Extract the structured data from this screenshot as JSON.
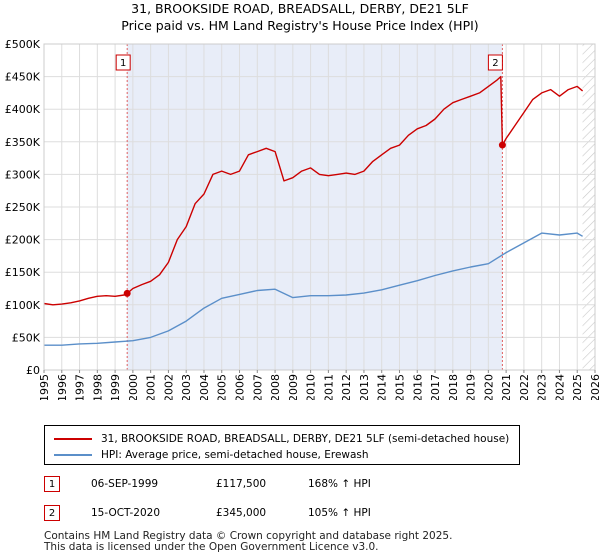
{
  "title_line1": "31, BROOKSIDE ROAD, BREADSALL, DERBY, DE21 5LF",
  "title_line2": "Price paid vs. HM Land Registry's House Price Index (HPI)",
  "chart_data": {
    "type": "line",
    "title": "31, BROOKSIDE ROAD, BREADSALL, DERBY, DE21 5LF - Price paid vs. HM Land Registry's House Price Index (HPI)",
    "xlabel": "",
    "ylabel": "",
    "xlim": [
      1995,
      2026
    ],
    "ylim": [
      0,
      500000
    ],
    "grid": true,
    "y_ticks": [
      0,
      50000,
      100000,
      150000,
      200000,
      250000,
      300000,
      350000,
      400000,
      450000,
      500000
    ],
    "y_tick_labels": [
      "£0",
      "£50K",
      "£100K",
      "£150K",
      "£200K",
      "£250K",
      "£300K",
      "£350K",
      "£400K",
      "£450K",
      "£500K"
    ],
    "x_ticks": [
      "1995",
      "1996",
      "1997",
      "1998",
      "1999",
      "2000",
      "2001",
      "2002",
      "2003",
      "2004",
      "2005",
      "2006",
      "2007",
      "2008",
      "2009",
      "2010",
      "2011",
      "2012",
      "2013",
      "2014",
      "2015",
      "2016",
      "2017",
      "2018",
      "2019",
      "2020",
      "2021",
      "2022",
      "2023",
      "2024",
      "2025",
      "2026"
    ],
    "shaded_region": [
      1999.68,
      2020.79
    ],
    "forecast_hatch_from": 2025.3,
    "series": [
      {
        "name": "31, BROOKSIDE ROAD, BREADSALL, DERBY, DE21 5LF (semi-detached house)",
        "color": "#cc0000",
        "x": [
          1995.0,
          1995.5,
          1996.0,
          1996.5,
          1997.0,
          1997.5,
          1998.0,
          1998.5,
          1999.0,
          1999.5,
          1999.68,
          2000.0,
          2000.5,
          2001.0,
          2001.5,
          2002.0,
          2002.5,
          2003.0,
          2003.5,
          2004.0,
          2004.5,
          2005.0,
          2005.5,
          2006.0,
          2006.5,
          2007.0,
          2007.5,
          2008.0,
          2008.5,
          2009.0,
          2009.5,
          2010.0,
          2010.5,
          2011.0,
          2011.5,
          2012.0,
          2012.5,
          2013.0,
          2013.5,
          2014.0,
          2014.5,
          2015.0,
          2015.5,
          2016.0,
          2016.5,
          2017.0,
          2017.5,
          2018.0,
          2018.5,
          2019.0,
          2019.5,
          2020.0,
          2020.5,
          2020.7,
          2020.79,
          2021.0,
          2021.5,
          2022.0,
          2022.5,
          2023.0,
          2023.5,
          2024.0,
          2024.5,
          2025.0,
          2025.3
        ],
        "values": [
          102000,
          100000,
          101000,
          103000,
          106000,
          110000,
          113000,
          114000,
          113000,
          115000,
          117500,
          125000,
          131000,
          136000,
          146000,
          165000,
          200000,
          220000,
          255000,
          270000,
          300000,
          305000,
          300000,
          305000,
          330000,
          335000,
          340000,
          335000,
          290000,
          295000,
          305000,
          310000,
          300000,
          298000,
          300000,
          302000,
          300000,
          305000,
          320000,
          330000,
          340000,
          345000,
          360000,
          370000,
          375000,
          385000,
          400000,
          410000,
          415000,
          420000,
          425000,
          435000,
          445000,
          450000,
          345000,
          355000,
          375000,
          395000,
          415000,
          425000,
          430000,
          420000,
          430000,
          435000,
          428000
        ]
      },
      {
        "name": "HPI: Average price, semi-detached house, Erewash",
        "color": "#5b8fc9",
        "x": [
          1995.0,
          1996.0,
          1997.0,
          1998.0,
          1999.0,
          2000.0,
          2001.0,
          2002.0,
          2003.0,
          2004.0,
          2005.0,
          2006.0,
          2007.0,
          2008.0,
          2009.0,
          2010.0,
          2011.0,
          2012.0,
          2013.0,
          2014.0,
          2015.0,
          2016.0,
          2017.0,
          2018.0,
          2019.0,
          2020.0,
          2021.0,
          2022.0,
          2023.0,
          2024.0,
          2025.0,
          2025.3
        ],
        "values": [
          38000,
          38000,
          40000,
          41000,
          43000,
          45000,
          50000,
          60000,
          75000,
          95000,
          110000,
          116000,
          122000,
          124000,
          111000,
          114000,
          114000,
          115000,
          118000,
          123000,
          130000,
          137000,
          145000,
          152000,
          158000,
          163000,
          180000,
          195000,
          210000,
          207000,
          210000,
          205000
        ]
      }
    ],
    "sale_points": [
      {
        "label": "1",
        "x": 1999.68,
        "value": 117500
      },
      {
        "label": "2",
        "x": 2020.79,
        "value": 345000
      }
    ]
  },
  "legend": {
    "property_label": "31, BROOKSIDE ROAD, BREADSALL, DERBY, DE21 5LF (semi-detached house)",
    "hpi_label": "HPI: Average price, semi-detached house, Erewash"
  },
  "transactions": [
    {
      "num": "1",
      "date": "06-SEP-1999",
      "price": "£117,500",
      "hpi": "168% ↑ HPI"
    },
    {
      "num": "2",
      "date": "15-OCT-2020",
      "price": "£345,000",
      "hpi": "105% ↑ HPI"
    }
  ],
  "footer": {
    "line1": "Contains HM Land Registry data © Crown copyright and database right 2025.",
    "line2": "This data is licensed under the Open Government Licence v3.0."
  }
}
